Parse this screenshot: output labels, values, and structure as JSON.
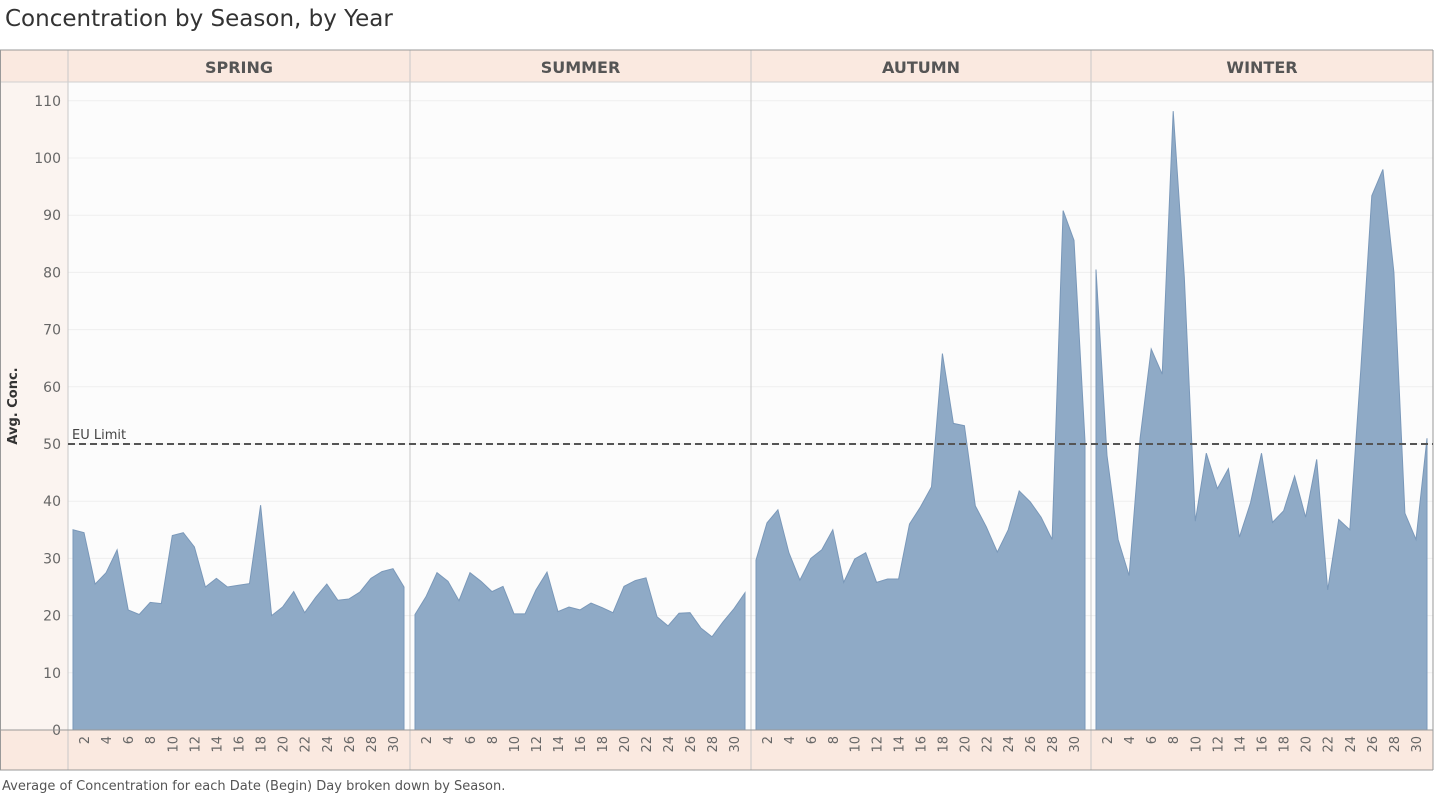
{
  "title": "Concentration by Season, by Year",
  "caption": "Average of Concentration for each Date (Begin) Day broken down by Season.",
  "colors": {
    "area_fill": "#8faac6",
    "area_stroke": "#7a98b9",
    "header_bg": "#fae9e0",
    "plot_bg": "#fcfcfc",
    "ref_line": "#555555"
  },
  "chart_data": {
    "type": "area",
    "ylabel": "Avg. Conc.",
    "ylim": [
      0,
      115
    ],
    "yticks": [
      0,
      10,
      20,
      30,
      40,
      50,
      60,
      70,
      80,
      90,
      100,
      110
    ],
    "xticks": [
      2,
      4,
      6,
      8,
      10,
      12,
      14,
      16,
      18,
      20,
      22,
      24,
      26,
      28,
      30
    ],
    "reference_line": {
      "label": "EU Limit",
      "value": 50,
      "style": "dashed"
    },
    "panels": [
      {
        "name": "SPRING",
        "x": [
          1,
          2,
          3,
          4,
          5,
          6,
          7,
          8,
          9,
          10,
          11,
          12,
          13,
          14,
          15,
          16,
          17,
          18,
          19,
          20,
          21,
          22,
          23,
          24,
          25,
          26,
          27,
          28,
          29,
          30,
          31
        ],
        "values": [
          35,
          34.5,
          25.5,
          27.5,
          31.5,
          21,
          20.2,
          22.3,
          22.1,
          34,
          34.5,
          32,
          25,
          26.5,
          25,
          25.3,
          25.6,
          39.3,
          20,
          21.5,
          24.2,
          20.5,
          23.2,
          25.5,
          22.7,
          22.9,
          24.1,
          26.5,
          27.7,
          28.2,
          25
        ]
      },
      {
        "name": "SUMMER",
        "x": [
          1,
          2,
          3,
          4,
          5,
          6,
          7,
          8,
          9,
          10,
          11,
          12,
          13,
          14,
          15,
          16,
          17,
          18,
          19,
          20,
          21,
          22,
          23,
          24,
          25,
          26,
          27,
          28,
          29,
          30,
          31
        ],
        "values": [
          20.2,
          23.3,
          27.5,
          26,
          22.6,
          27.5,
          26,
          24.2,
          25.1,
          20.3,
          20.3,
          24.5,
          27.6,
          20.7,
          21.5,
          21,
          22.2,
          21.4,
          20.5,
          25.1,
          26.1,
          26.6,
          19.8,
          18.2,
          20.4,
          20.5,
          17.8,
          16.3,
          18.9,
          21.2,
          24
        ]
      },
      {
        "name": "AUTUMN",
        "x": [
          1,
          2,
          3,
          4,
          5,
          6,
          7,
          8,
          9,
          10,
          11,
          12,
          13,
          14,
          15,
          16,
          17,
          18,
          19,
          20,
          21,
          22,
          23,
          24,
          25,
          26,
          27,
          28,
          29,
          30,
          31
        ],
        "values": [
          29.7,
          36.2,
          38.5,
          31,
          26.2,
          30,
          31.5,
          35,
          25.8,
          29.9,
          31,
          25.8,
          26.4,
          26.4,
          36,
          39,
          42.5,
          65.8,
          53.6,
          53.2,
          39.2,
          35.5,
          31.1,
          35,
          41.8,
          39.9,
          37.2,
          33.3,
          90.8,
          85.6,
          50.5
        ]
      },
      {
        "name": "WINTER",
        "x": [
          1,
          2,
          3,
          4,
          5,
          6,
          7,
          8,
          9,
          10,
          11,
          12,
          13,
          14,
          15,
          16,
          17,
          18,
          19,
          20,
          21,
          22,
          23,
          24,
          25,
          26,
          27,
          28,
          29,
          30,
          31
        ],
        "values": [
          80.5,
          48,
          33.3,
          27,
          51,
          66.6,
          62.2,
          108.2,
          79.2,
          36.5,
          48.4,
          42.2,
          45.7,
          33.7,
          39.7,
          48.4,
          36.3,
          38.3,
          44.4,
          37.2,
          47.3,
          24.5,
          36.8,
          35,
          63,
          93.4,
          98,
          80,
          37.9,
          33.3,
          51
        ]
      }
    ]
  }
}
